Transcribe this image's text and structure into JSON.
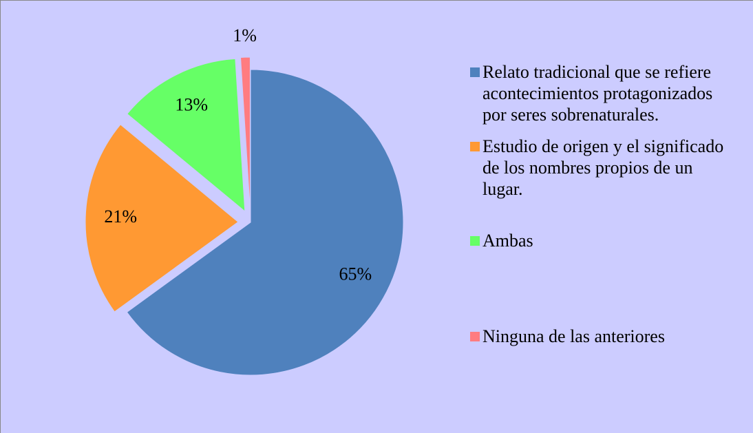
{
  "chart_data": {
    "type": "pie",
    "categories": [
      "Relato tradicional  que se refiere acontecimientos protagonizados por seres sobrenaturales.",
      "Estudio de origen y el significado  de los nombres propios de un lugar.",
      "Ambas",
      "Ninguna de las anteriores"
    ],
    "values": [
      65,
      21,
      13,
      1
    ],
    "value_labels": [
      "65%",
      "21%",
      "13%",
      "1%"
    ],
    "colors": [
      "#4f81bd",
      "#ff9933",
      "#66ff66",
      "#ff7c80"
    ],
    "legend": "right"
  }
}
